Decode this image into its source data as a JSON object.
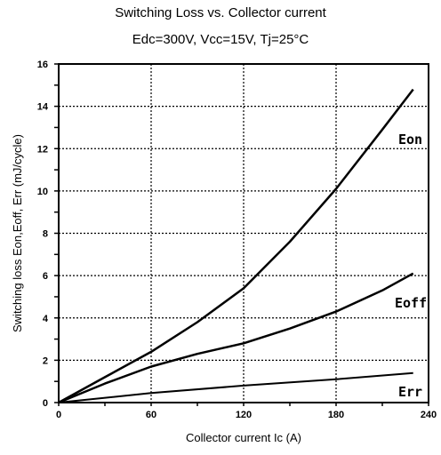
{
  "chart_data": {
    "type": "line",
    "title": "Switching Loss vs. Collector current",
    "subtitle": "Edc=300V, Vcc=15V, Tj=25°C",
    "xlabel": "Collector current  Ic (A)",
    "ylabel": "Switching loss Eon,Eoff, Err  (mJ/cycle)",
    "xlim": [
      0,
      240
    ],
    "ylim": [
      0,
      16
    ],
    "xticks": [
      0,
      60,
      120,
      180,
      240
    ],
    "yticks": [
      0,
      2,
      4,
      6,
      8,
      10,
      12,
      14,
      16
    ],
    "grid": true,
    "grid_style": "dotted",
    "series": [
      {
        "name": "Eon",
        "x": [
          0,
          30,
          60,
          90,
          120,
          150,
          180,
          210,
          230
        ],
        "y": [
          0,
          1.2,
          2.4,
          3.8,
          5.4,
          7.6,
          10.1,
          12.9,
          14.8
        ]
      },
      {
        "name": "Eoff",
        "x": [
          0,
          30,
          60,
          90,
          120,
          150,
          180,
          210,
          230
        ],
        "y": [
          0,
          0.9,
          1.7,
          2.3,
          2.8,
          3.5,
          4.3,
          5.3,
          6.1
        ]
      },
      {
        "name": "Err",
        "x": [
          0,
          60,
          120,
          180,
          230
        ],
        "y": [
          0,
          0.45,
          0.8,
          1.1,
          1.4
        ]
      }
    ]
  }
}
